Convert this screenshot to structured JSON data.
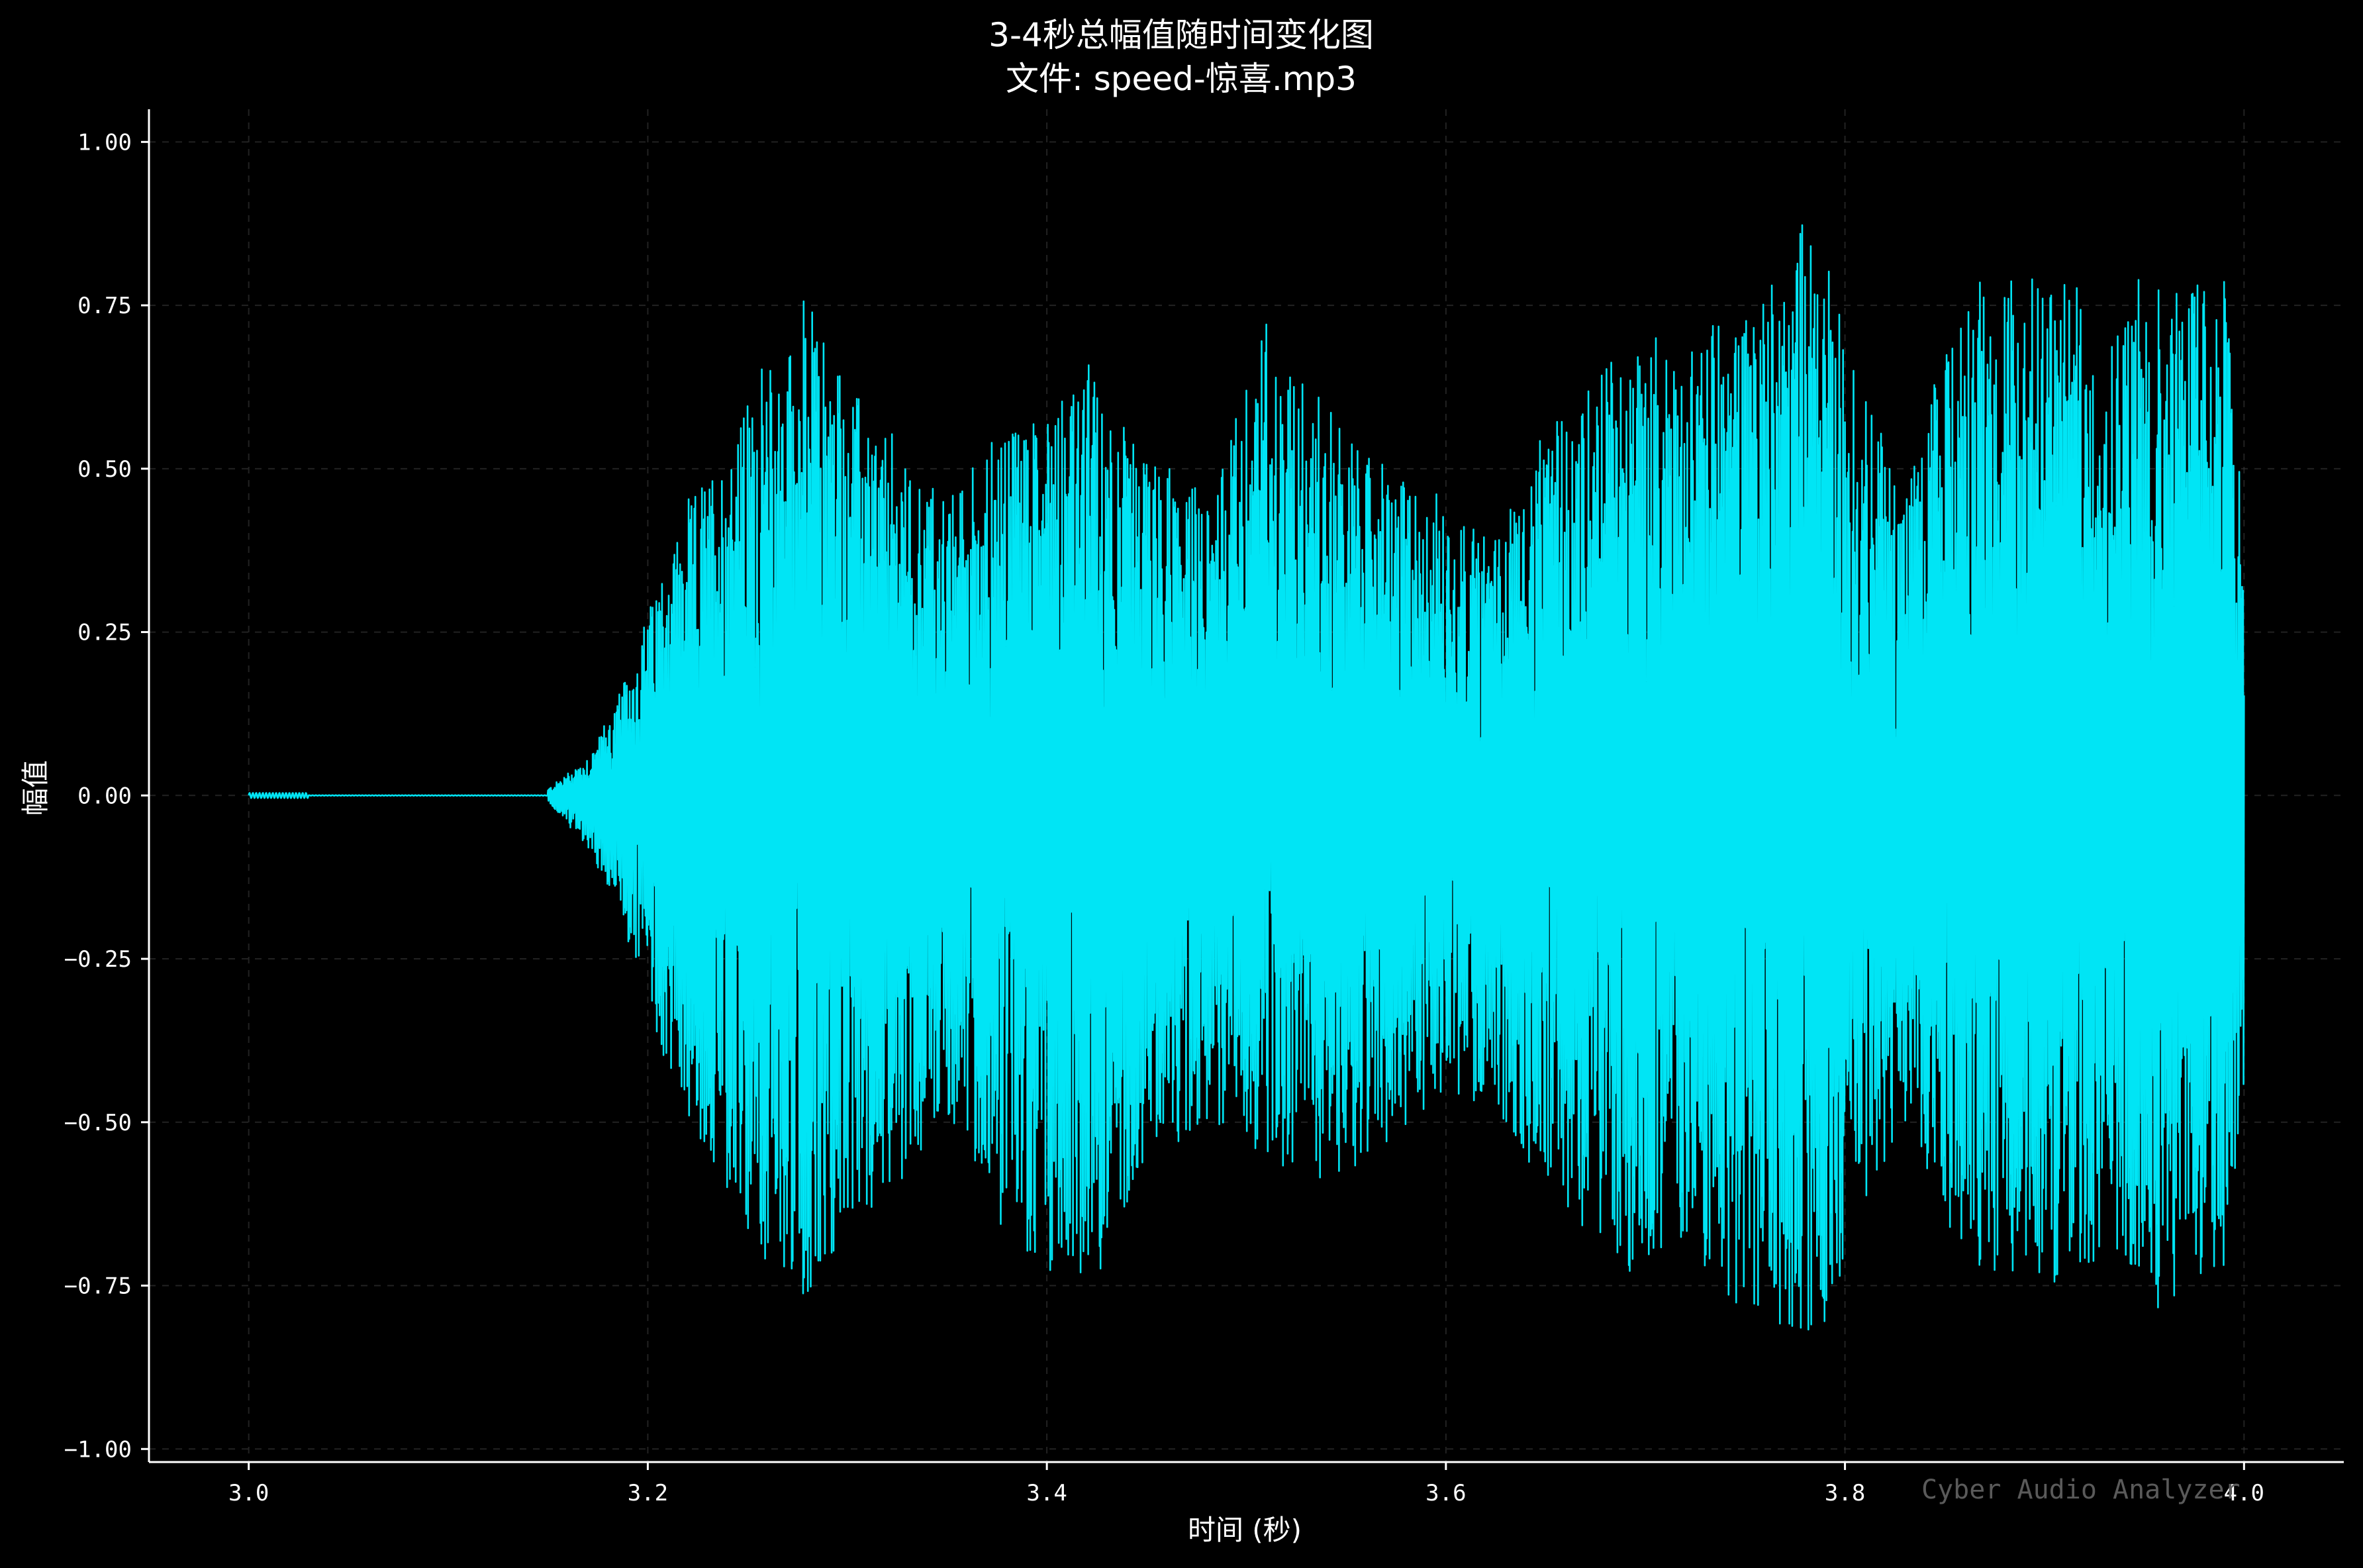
{
  "chart_data": {
    "type": "line",
    "title": "3-4秒总幅值随时间变化图",
    "subtitle": "文件: speed-惊喜.mp3",
    "xlabel": "时间 (秒)",
    "ylabel": "幅值",
    "xlim": [
      2.95,
      4.05
    ],
    "ylim": [
      -1.02,
      1.05
    ],
    "x_ticks": [
      3.0,
      3.2,
      3.4,
      3.6,
      3.8,
      4.0
    ],
    "x_tick_labels": [
      "3.0",
      "3.2",
      "3.4",
      "3.6",
      "3.8",
      "4.0"
    ],
    "y_ticks": [
      1.0,
      0.75,
      0.5,
      0.25,
      0.0,
      -0.25,
      -0.5,
      -0.75,
      -1.0
    ],
    "y_tick_labels": [
      "1.00",
      "0.75",
      "0.50",
      "0.25",
      "0.00",
      "−0.25",
      "−0.50",
      "−0.75",
      "−1.00"
    ],
    "grid": true,
    "line_color": "#00e5f5",
    "background": "#000000",
    "series": [
      {
        "x_range": [
          3.0,
          4.0
        ],
        "signal_onset": 3.15,
        "max_value": 0.95,
        "min_value": -0.92,
        "envelope": {
          "t": [
            3.0,
            3.15,
            3.17,
            3.19,
            3.21,
            3.25,
            3.28,
            3.31,
            3.35,
            3.39,
            3.42,
            3.45,
            3.48,
            3.51,
            3.55,
            3.58,
            3.62,
            3.66,
            3.69,
            3.72,
            3.75,
            3.78,
            3.8,
            3.83,
            3.86,
            3.9,
            3.93,
            3.96,
            3.99,
            4.0
          ],
          "upper": [
            0.01,
            0.01,
            0.06,
            0.18,
            0.38,
            0.6,
            0.75,
            0.58,
            0.45,
            0.6,
            0.65,
            0.52,
            0.45,
            0.72,
            0.55,
            0.48,
            0.4,
            0.58,
            0.7,
            0.68,
            0.75,
            0.9,
            0.72,
            0.45,
            0.78,
            0.82,
            0.72,
            0.82,
            0.8,
            0.42
          ],
          "lower": [
            -0.01,
            -0.01,
            -0.08,
            -0.22,
            -0.42,
            -0.68,
            -0.78,
            -0.62,
            -0.5,
            -0.72,
            -0.75,
            -0.55,
            -0.48,
            -0.55,
            -0.58,
            -0.5,
            -0.45,
            -0.65,
            -0.72,
            -0.7,
            -0.78,
            -0.85,
            -0.7,
            -0.5,
            -0.7,
            -0.75,
            -0.72,
            -0.78,
            -0.7,
            -0.45
          ]
        }
      }
    ]
  },
  "watermark": "Cyber Audio Analyzer"
}
